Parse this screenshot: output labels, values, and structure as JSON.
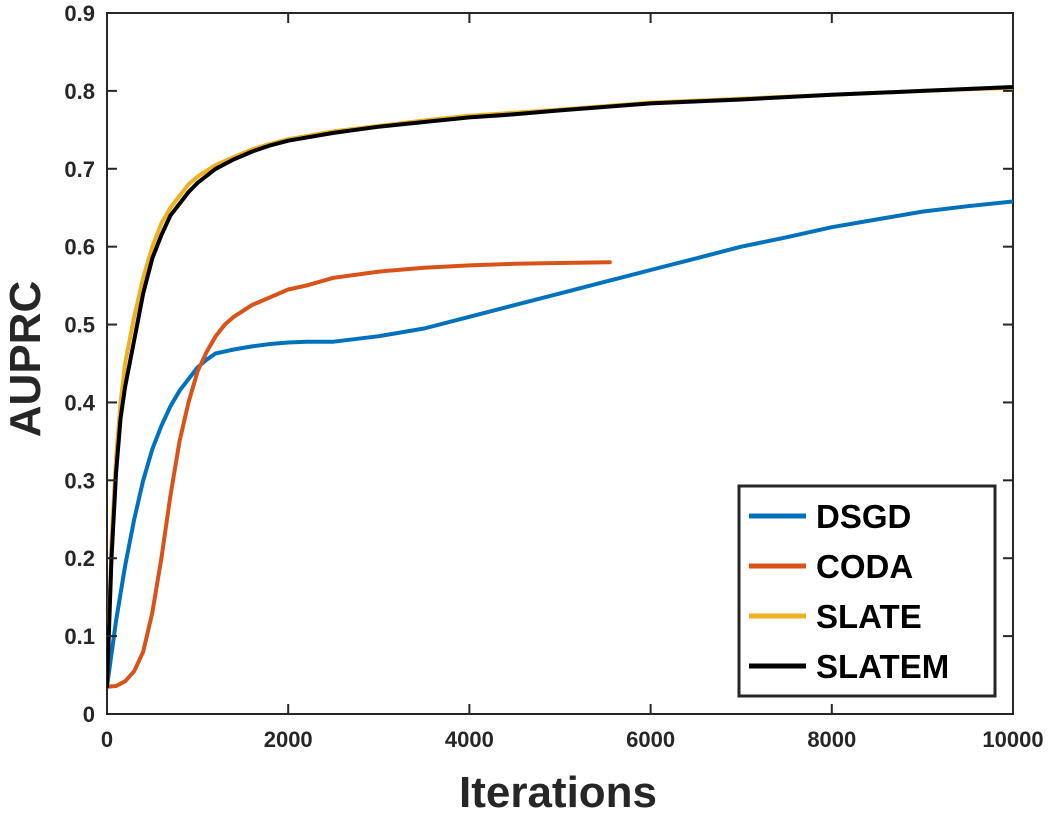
{
  "chart_data": {
    "type": "line",
    "title": "",
    "xlabel": "Iterations",
    "ylabel": "AUPRC",
    "xlim": [
      0,
      10000
    ],
    "ylim": [
      0,
      0.9
    ],
    "xticks": [
      0,
      2000,
      4000,
      6000,
      8000,
      10000
    ],
    "xtick_labels": [
      "0",
      "2000",
      "4000",
      "6000",
      "8000",
      "10000"
    ],
    "yticks": [
      0,
      0.1,
      0.2,
      0.3,
      0.4,
      0.5,
      0.6,
      0.7,
      0.8,
      0.9
    ],
    "ytick_labels": [
      "0",
      "0.1",
      "0.2",
      "0.3",
      "0.4",
      "0.5",
      "0.6",
      "0.7",
      "0.8",
      "0.9"
    ],
    "grid": false,
    "legend_position": "bottom-right",
    "series": [
      {
        "name": "DSGD",
        "color": "#0072BD",
        "x": [
          0,
          100,
          200,
          300,
          400,
          500,
          600,
          700,
          800,
          900,
          1000,
          1100,
          1200,
          1400,
          1600,
          1800,
          2000,
          2200,
          2500,
          3000,
          3500,
          4000,
          4500,
          5000,
          5500,
          6000,
          6500,
          7000,
          7500,
          8000,
          8500,
          9000,
          9500,
          10000
        ],
        "values": [
          0.035,
          0.12,
          0.19,
          0.25,
          0.3,
          0.34,
          0.37,
          0.395,
          0.415,
          0.43,
          0.445,
          0.455,
          0.463,
          0.468,
          0.472,
          0.475,
          0.477,
          0.478,
          0.478,
          0.485,
          0.495,
          0.51,
          0.525,
          0.54,
          0.555,
          0.57,
          0.585,
          0.6,
          0.612,
          0.625,
          0.635,
          0.645,
          0.652,
          0.658
        ]
      },
      {
        "name": "CODA",
        "color": "#D95319",
        "x": [
          0,
          100,
          200,
          300,
          400,
          500,
          600,
          700,
          800,
          900,
          1000,
          1100,
          1200,
          1300,
          1400,
          1600,
          1800,
          2000,
          2200,
          2500,
          3000,
          3500,
          4000,
          4500,
          5000,
          5550
        ],
        "values": [
          0.035,
          0.036,
          0.042,
          0.055,
          0.08,
          0.13,
          0.2,
          0.28,
          0.35,
          0.4,
          0.44,
          0.465,
          0.485,
          0.5,
          0.51,
          0.525,
          0.535,
          0.545,
          0.55,
          0.56,
          0.568,
          0.573,
          0.576,
          0.578,
          0.579,
          0.58
        ]
      },
      {
        "name": "SLATE",
        "color": "#EDB120",
        "x": [
          0,
          50,
          100,
          150,
          200,
          300,
          400,
          500,
          600,
          700,
          800,
          900,
          1000,
          1200,
          1400,
          1600,
          1800,
          2000,
          2500,
          3000,
          3500,
          4000,
          4500,
          5000,
          6000,
          7000,
          8000,
          9000,
          10000
        ],
        "values": [
          0.035,
          0.22,
          0.33,
          0.4,
          0.45,
          0.51,
          0.56,
          0.6,
          0.63,
          0.65,
          0.665,
          0.68,
          0.69,
          0.705,
          0.715,
          0.725,
          0.732,
          0.738,
          0.748,
          0.755,
          0.762,
          0.768,
          0.772,
          0.776,
          0.785,
          0.79,
          0.795,
          0.8,
          0.804
        ]
      },
      {
        "name": "SLATEM",
        "color": "#000000",
        "x": [
          0,
          50,
          100,
          150,
          200,
          300,
          400,
          500,
          600,
          700,
          800,
          900,
          1000,
          1200,
          1400,
          1600,
          1800,
          2000,
          2500,
          3000,
          3500,
          4000,
          4500,
          5000,
          6000,
          7000,
          8000,
          9000,
          10000
        ],
        "values": [
          0.035,
          0.2,
          0.31,
          0.38,
          0.42,
          0.48,
          0.54,
          0.585,
          0.615,
          0.64,
          0.655,
          0.67,
          0.682,
          0.7,
          0.712,
          0.722,
          0.73,
          0.736,
          0.746,
          0.754,
          0.76,
          0.766,
          0.77,
          0.775,
          0.784,
          0.789,
          0.795,
          0.8,
          0.805
        ]
      }
    ]
  }
}
